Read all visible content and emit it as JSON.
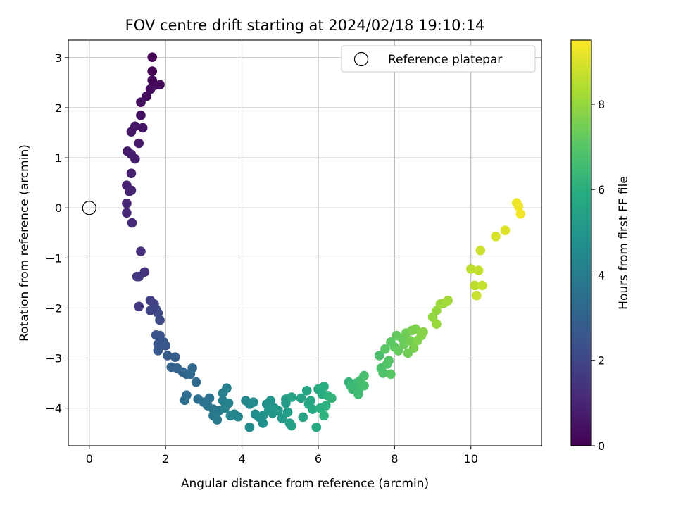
{
  "chart_data": {
    "type": "scatter",
    "title": "FOV centre drift starting at 2024/02/18 19:10:14",
    "xlabel": "Angular distance from reference (arcmin)",
    "ylabel": "Rotation from reference (arcmin)",
    "xlim": [
      -0.55,
      11.85
    ],
    "ylim": [
      -4.75,
      3.35
    ],
    "xticks": [
      0,
      2,
      4,
      6,
      8,
      10
    ],
    "yticks": [
      -4,
      -3,
      -2,
      -1,
      0,
      1,
      2,
      3
    ],
    "grid": true,
    "legend": {
      "placement": "top-right",
      "entries": [
        "Reference platepar"
      ]
    },
    "reference_point": {
      "label": "Reference platepar",
      "x": 0,
      "y": 0,
      "marker": "hollow-circle"
    },
    "colorbar": {
      "label": "Hours from first FF file",
      "colormap": "viridis",
      "range": [
        0,
        9.5
      ],
      "ticks": [
        0,
        2,
        4,
        6,
        8
      ]
    },
    "series": [
      {
        "columns": [
          "x",
          "y",
          "hours"
        ],
        "points": [
          [
            1.65,
            3.01,
            0.05
          ],
          [
            1.65,
            2.73,
            0.1
          ],
          [
            1.65,
            2.55,
            0.15
          ],
          [
            1.72,
            2.45,
            0.2
          ],
          [
            1.85,
            2.46,
            0.25
          ],
          [
            1.6,
            2.37,
            0.3
          ],
          [
            1.5,
            2.23,
            0.35
          ],
          [
            1.35,
            2.11,
            0.4
          ],
          [
            1.35,
            1.85,
            0.45
          ],
          [
            1.4,
            1.6,
            0.5
          ],
          [
            1.2,
            1.63,
            0.55
          ],
          [
            1.1,
            1.52,
            0.6
          ],
          [
            1.3,
            1.29,
            0.65
          ],
          [
            1.0,
            1.13,
            0.7
          ],
          [
            1.1,
            1.07,
            0.75
          ],
          [
            1.2,
            0.98,
            0.8
          ],
          [
            1.1,
            0.69,
            0.85
          ],
          [
            0.98,
            0.45,
            0.9
          ],
          [
            1.1,
            0.35,
            0.95
          ],
          [
            1.05,
            0.33,
            1.0
          ],
          [
            0.98,
            0.09,
            1.05
          ],
          [
            0.98,
            -0.1,
            1.1
          ],
          [
            1.12,
            -0.3,
            1.15
          ],
          [
            1.35,
            -0.87,
            1.3
          ],
          [
            1.45,
            -1.28,
            1.4
          ],
          [
            1.3,
            -1.37,
            1.45
          ],
          [
            1.25,
            -1.37,
            1.5
          ],
          [
            1.3,
            -1.97,
            1.6
          ],
          [
            1.6,
            -1.85,
            1.8
          ],
          [
            1.7,
            -1.92,
            1.9
          ],
          [
            1.6,
            -2.05,
            2.0
          ],
          [
            1.75,
            -2.03,
            2.05
          ],
          [
            1.8,
            -2.1,
            2.1
          ],
          [
            1.85,
            -2.24,
            2.2
          ],
          [
            1.75,
            -2.54,
            2.4
          ],
          [
            1.85,
            -2.55,
            2.45
          ],
          [
            1.8,
            -2.72,
            2.5
          ],
          [
            1.95,
            -2.68,
            2.55
          ],
          [
            1.8,
            -2.85,
            2.6
          ],
          [
            2.0,
            -2.75,
            2.65
          ],
          [
            2.05,
            -2.95,
            2.8
          ],
          [
            2.25,
            -2.98,
            2.85
          ],
          [
            2.15,
            -3.18,
            2.95
          ],
          [
            2.3,
            -3.2,
            3.0
          ],
          [
            2.45,
            -3.28,
            3.1
          ],
          [
            2.55,
            -3.32,
            3.15
          ],
          [
            2.7,
            -3.2,
            3.2
          ],
          [
            2.65,
            -3.32,
            3.25
          ],
          [
            2.8,
            -3.48,
            3.3
          ],
          [
            2.55,
            -3.74,
            3.4
          ],
          [
            2.5,
            -3.84,
            3.45
          ],
          [
            2.85,
            -3.82,
            3.5
          ],
          [
            3.0,
            -3.88,
            3.6
          ],
          [
            3.15,
            -3.8,
            3.65
          ],
          [
            3.1,
            -3.95,
            3.7
          ],
          [
            3.25,
            -4.02,
            3.8
          ],
          [
            3.4,
            -4.05,
            3.85
          ],
          [
            3.25,
            -4.15,
            3.9
          ],
          [
            3.35,
            -4.23,
            4.0
          ],
          [
            3.5,
            -3.85,
            4.05
          ],
          [
            3.5,
            -3.7,
            4.1
          ],
          [
            3.6,
            -3.6,
            4.15
          ],
          [
            3.65,
            -3.9,
            4.2
          ],
          [
            3.55,
            -4.0,
            4.25
          ],
          [
            3.7,
            -4.15,
            4.3
          ],
          [
            3.8,
            -4.12,
            4.35
          ],
          [
            3.9,
            -4.17,
            4.4
          ],
          [
            4.1,
            -3.85,
            4.45
          ],
          [
            4.2,
            -3.92,
            4.5
          ],
          [
            4.3,
            -3.88,
            4.55
          ],
          [
            4.2,
            -4.38,
            4.6
          ],
          [
            4.35,
            -4.12,
            4.65
          ],
          [
            4.45,
            -4.18,
            4.7
          ],
          [
            4.55,
            -4.3,
            4.75
          ],
          [
            4.55,
            -4.15,
            4.8
          ],
          [
            4.65,
            -3.92,
            4.85
          ],
          [
            4.75,
            -3.85,
            4.9
          ],
          [
            4.7,
            -4.05,
            4.95
          ],
          [
            4.8,
            -4.1,
            5.0
          ],
          [
            4.85,
            -4.0,
            5.05
          ],
          [
            4.95,
            -4.05,
            5.1
          ],
          [
            5.05,
            -4.2,
            5.15
          ],
          [
            5.15,
            -3.9,
            5.2
          ],
          [
            5.15,
            -3.82,
            5.25
          ],
          [
            5.2,
            -4.08,
            5.3
          ],
          [
            5.25,
            -4.3,
            5.35
          ],
          [
            5.3,
            -4.35,
            5.4
          ],
          [
            5.3,
            -3.78,
            5.45
          ],
          [
            5.55,
            -3.8,
            5.5
          ],
          [
            5.6,
            -4.18,
            5.55
          ],
          [
            5.7,
            -3.65,
            5.6
          ],
          [
            5.75,
            -3.92,
            5.65
          ],
          [
            5.8,
            -3.85,
            5.7
          ],
          [
            5.85,
            -4.02,
            5.75
          ],
          [
            5.95,
            -4.38,
            5.8
          ],
          [
            6.0,
            -3.62,
            5.85
          ],
          [
            6.1,
            -3.72,
            5.9
          ],
          [
            6.15,
            -3.57,
            5.95
          ],
          [
            6.05,
            -4.0,
            6.0
          ],
          [
            6.2,
            -3.95,
            6.05
          ],
          [
            6.25,
            -3.75,
            6.1
          ],
          [
            6.15,
            -4.15,
            6.15
          ],
          [
            6.35,
            -3.8,
            6.2
          ],
          [
            6.8,
            -3.48,
            6.3
          ],
          [
            6.85,
            -3.55,
            6.35
          ],
          [
            6.9,
            -3.62,
            6.4
          ],
          [
            7.0,
            -3.5,
            6.45
          ],
          [
            7.05,
            -3.65,
            6.5
          ],
          [
            7.05,
            -3.72,
            6.55
          ],
          [
            7.1,
            -3.45,
            6.6
          ],
          [
            7.2,
            -3.55,
            6.65
          ],
          [
            7.2,
            -3.35,
            6.7
          ],
          [
            7.6,
            -2.95,
            6.75
          ],
          [
            7.65,
            -3.2,
            6.8
          ],
          [
            7.7,
            -3.3,
            6.85
          ],
          [
            7.8,
            -3.12,
            6.9
          ],
          [
            7.85,
            -3.05,
            6.95
          ],
          [
            7.9,
            -3.32,
            7.0
          ],
          [
            7.75,
            -2.82,
            7.05
          ],
          [
            7.9,
            -2.68,
            7.1
          ],
          [
            8.0,
            -2.78,
            7.15
          ],
          [
            8.05,
            -2.55,
            7.2
          ],
          [
            8.1,
            -2.85,
            7.25
          ],
          [
            8.2,
            -2.6,
            7.3
          ],
          [
            8.25,
            -2.72,
            7.35
          ],
          [
            8.3,
            -2.5,
            7.4
          ],
          [
            8.35,
            -2.9,
            7.45
          ],
          [
            8.4,
            -2.65,
            7.5
          ],
          [
            8.45,
            -2.45,
            7.55
          ],
          [
            8.5,
            -2.8,
            7.6
          ],
          [
            8.55,
            -2.42,
            7.65
          ],
          [
            8.6,
            -2.65,
            7.7
          ],
          [
            8.7,
            -2.55,
            7.75
          ],
          [
            8.75,
            -2.48,
            7.8
          ],
          [
            9.0,
            -2.18,
            7.95
          ],
          [
            9.1,
            -2.05,
            8.0
          ],
          [
            9.1,
            -2.32,
            8.05
          ],
          [
            9.2,
            -1.92,
            8.1
          ],
          [
            9.3,
            -1.9,
            8.15
          ],
          [
            9.4,
            -1.85,
            8.2
          ],
          [
            10.0,
            -1.22,
            8.55
          ],
          [
            10.1,
            -1.55,
            8.6
          ],
          [
            10.2,
            -1.25,
            8.65
          ],
          [
            10.3,
            -1.55,
            8.7
          ],
          [
            10.15,
            -1.75,
            8.75
          ],
          [
            10.25,
            -0.85,
            8.8
          ],
          [
            10.65,
            -0.57,
            8.95
          ],
          [
            10.9,
            -0.45,
            9.05
          ],
          [
            11.2,
            0.1,
            9.25
          ],
          [
            11.25,
            0.03,
            9.3
          ],
          [
            11.3,
            -0.12,
            9.35
          ]
        ]
      }
    ]
  }
}
